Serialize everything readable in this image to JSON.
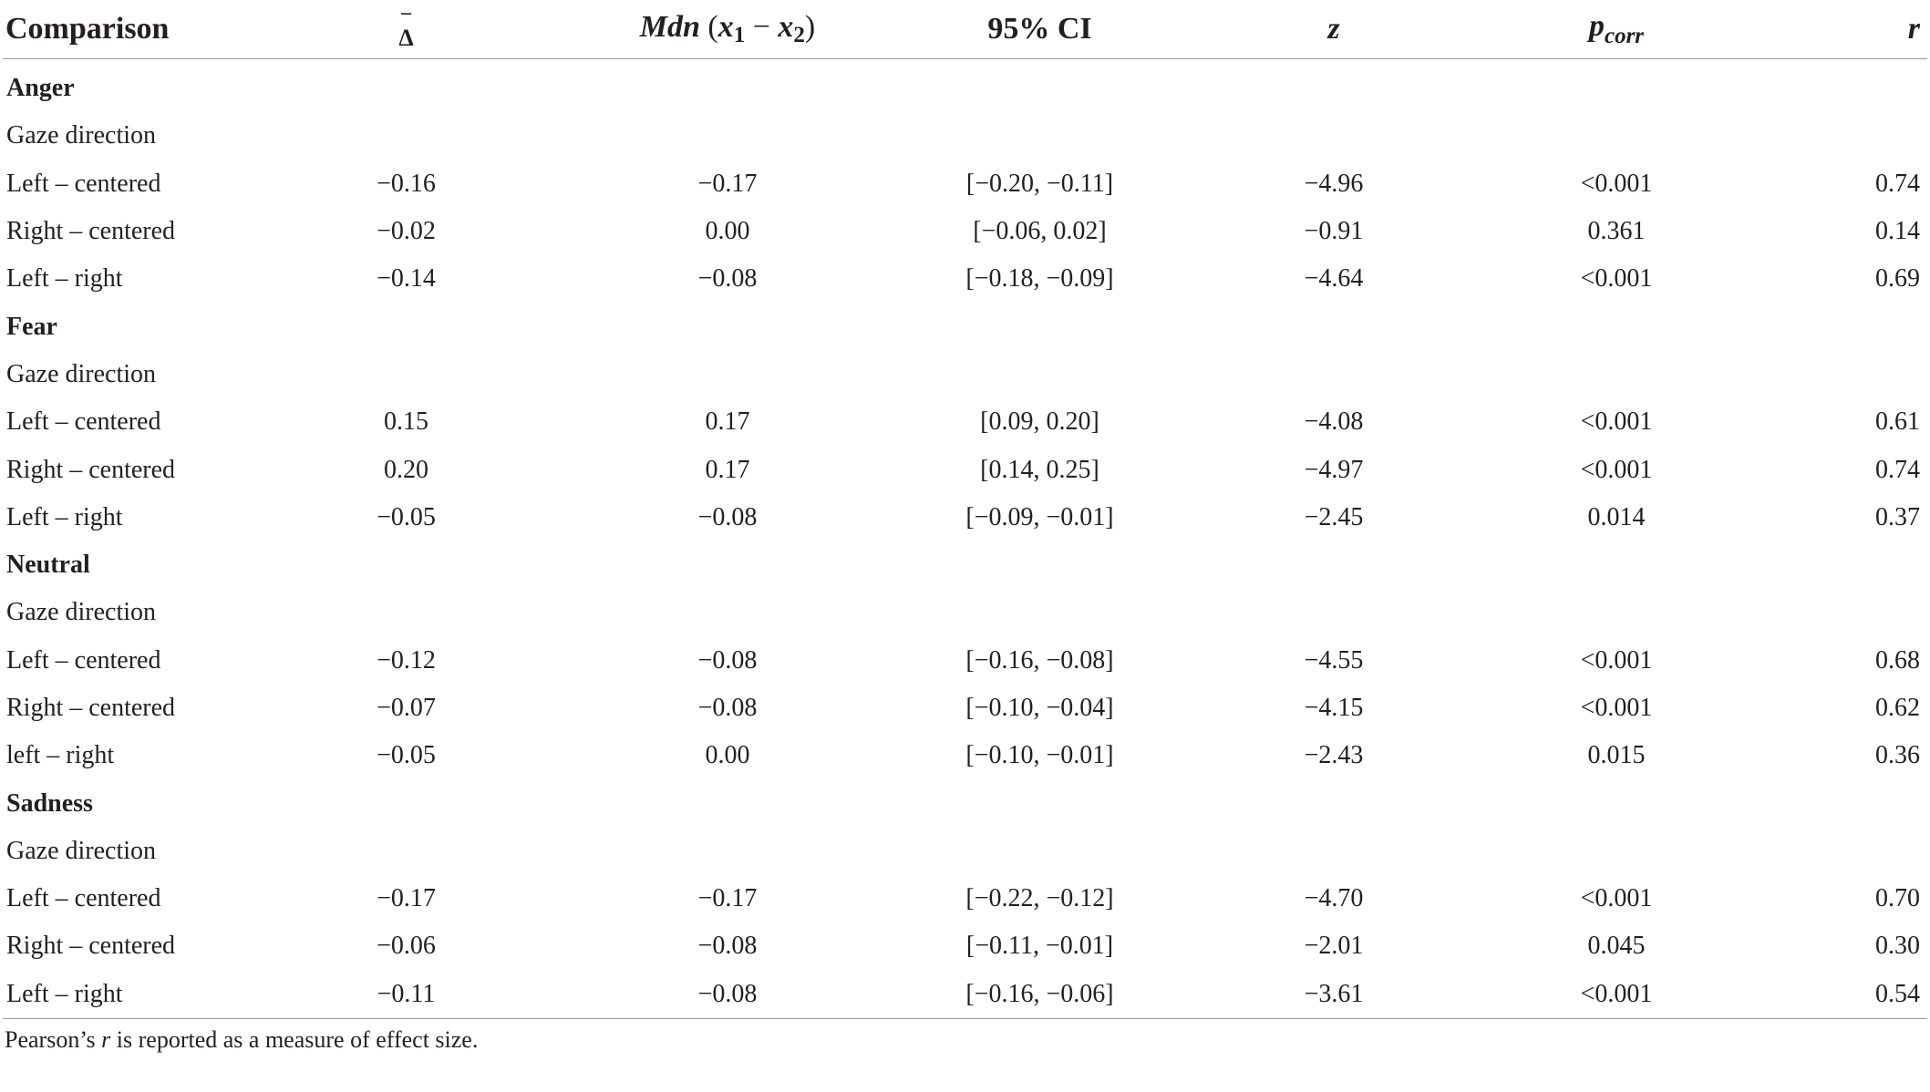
{
  "headers": {
    "comparison": "Comparison",
    "delta_symbol": "Δ",
    "delta_bar": "¯",
    "mdn_prefix": "Mdn",
    "mdn_open": "(",
    "mdn_x": "x",
    "mdn_sub1": "1",
    "mdn_minus": " − ",
    "mdn_sub2": "2",
    "mdn_close": ")",
    "ci": "95% CI",
    "z": "z",
    "p": "p",
    "p_sub": "corr",
    "r": "r"
  },
  "groups": [
    {
      "name": "Anger",
      "subheading": "Gaze direction",
      "rows": [
        {
          "comparison": "Left – centered",
          "delta": "−0.16",
          "mdn": "−0.17",
          "ci": "[−0.20, −0.11]",
          "z": "−4.96",
          "p": "<0.001",
          "r": "0.74"
        },
        {
          "comparison": "Right – centered",
          "delta": "−0.02",
          "mdn": "0.00",
          "ci": "[−0.06, 0.02]",
          "z": "−0.91",
          "p": "0.361",
          "r": "0.14"
        },
        {
          "comparison": "Left – right",
          "delta": "−0.14",
          "mdn": "−0.08",
          "ci": "[−0.18, −0.09]",
          "z": "−4.64",
          "p": "<0.001",
          "r": "0.69"
        }
      ]
    },
    {
      "name": "Fear",
      "subheading": "Gaze direction",
      "rows": [
        {
          "comparison": "Left – centered",
          "delta": "0.15",
          "mdn": "0.17",
          "ci": "[0.09, 0.20]",
          "z": "−4.08",
          "p": "<0.001",
          "r": "0.61"
        },
        {
          "comparison": "Right – centered",
          "delta": "0.20",
          "mdn": "0.17",
          "ci": "[0.14, 0.25]",
          "z": "−4.97",
          "p": "<0.001",
          "r": "0.74"
        },
        {
          "comparison": "Left – right",
          "delta": "−0.05",
          "mdn": "−0.08",
          "ci": "[−0.09, −0.01]",
          "z": "−2.45",
          "p": "0.014",
          "r": "0.37"
        }
      ]
    },
    {
      "name": "Neutral",
      "subheading": "Gaze direction",
      "rows": [
        {
          "comparison": "Left – centered",
          "delta": "−0.12",
          "mdn": "−0.08",
          "ci": "[−0.16, −0.08]",
          "z": "−4.55",
          "p": "<0.001",
          "r": "0.68"
        },
        {
          "comparison": "Right – centered",
          "delta": "−0.07",
          "mdn": "−0.08",
          "ci": "[−0.10, −0.04]",
          "z": "−4.15",
          "p": "<0.001",
          "r": "0.62"
        },
        {
          "comparison": "left – right",
          "delta": "−0.05",
          "mdn": "0.00",
          "ci": "[−0.10, −0.01]",
          "z": "−2.43",
          "p": "0.015",
          "r": "0.36"
        }
      ]
    },
    {
      "name": "Sadness",
      "subheading": "Gaze direction",
      "rows": [
        {
          "comparison": "Left – centered",
          "delta": "−0.17",
          "mdn": "−0.17",
          "ci": "[−0.22, −0.12]",
          "z": "−4.70",
          "p": "<0.001",
          "r": "0.70"
        },
        {
          "comparison": "Right – centered",
          "delta": "−0.06",
          "mdn": "−0.08",
          "ci": "[−0.11, −0.01]",
          "z": "−2.01",
          "p": "0.045",
          "r": "0.30"
        },
        {
          "comparison": "Left – right",
          "delta": "−0.11",
          "mdn": "−0.08",
          "ci": "[−0.16, −0.06]",
          "z": "−3.61",
          "p": "<0.001",
          "r": "0.54"
        }
      ]
    }
  ],
  "footnote": {
    "before": "Pearson’s ",
    "r": "r",
    "after": " is reported as a measure of effect size."
  }
}
